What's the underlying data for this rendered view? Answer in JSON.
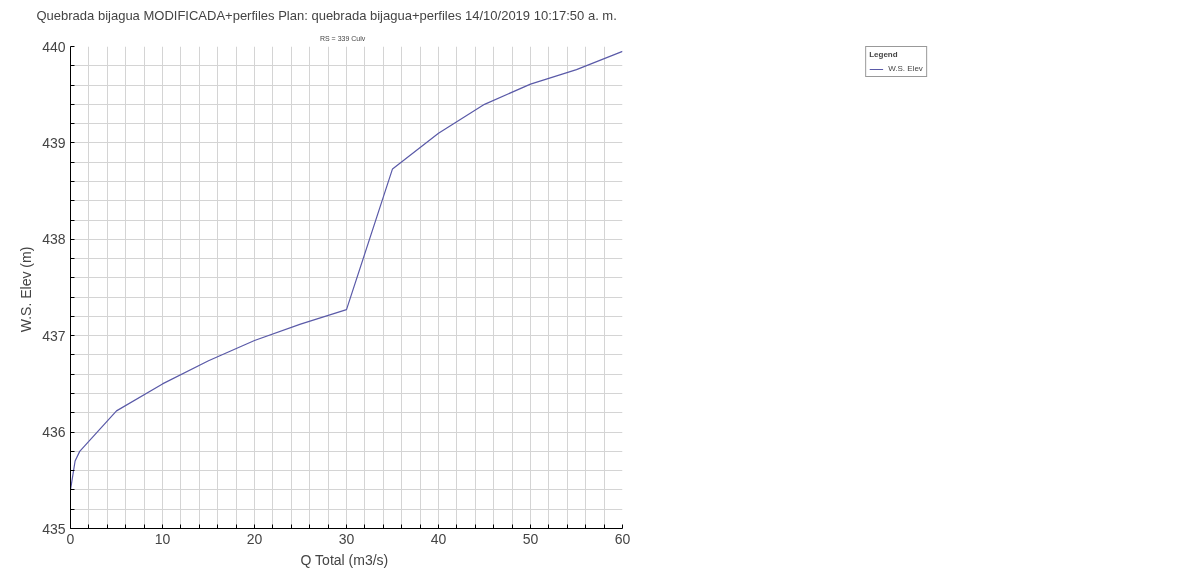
{
  "chart_data": {
    "type": "line",
    "title": "Quebrada bijagua MODIFICADA+perfiles       Plan: quebrada bijagua+perfiles     14/10/2019  10:17:50 a. m.",
    "subtitle": "RS = 339     Culv",
    "xlabel": "Q Total  (m3/s)",
    "ylabel": "W.S. Elev  (m)",
    "legend_title": "Legend",
    "x": [
      0,
      0.5,
      1,
      5,
      10,
      15,
      20,
      25,
      30,
      35,
      40,
      45,
      50,
      55,
      60
    ],
    "series": [
      {
        "name": "W.S. Elev",
        "color": "#5a5aa8",
        "values": [
          435.4,
          435.7,
          435.8,
          436.22,
          436.5,
          436.74,
          436.95,
          437.12,
          437.27,
          438.73,
          439.1,
          439.4,
          439.61,
          439.76,
          439.95
        ]
      }
    ],
    "xlim": [
      0,
      60
    ],
    "ylim": [
      435,
      440
    ],
    "xticks": [
      0,
      {
        "value": 2,
        "label": null
      },
      {
        "value": 4,
        "label": null
      },
      {
        "value": 6,
        "label": null
      },
      {
        "value": 8,
        "label": null
      },
      10,
      {
        "value": 12,
        "label": null
      },
      {
        "value": 14,
        "label": null
      },
      {
        "value": 16,
        "label": null
      },
      {
        "value": 18,
        "label": null
      },
      20,
      {
        "value": 22,
        "label": null
      },
      {
        "value": 24,
        "label": null
      },
      {
        "value": 26,
        "label": null
      },
      {
        "value": 28,
        "label": null
      },
      30,
      {
        "value": 32,
        "label": null
      },
      {
        "value": 34,
        "label": null
      },
      {
        "value": 36,
        "label": null
      },
      {
        "value": 38,
        "label": null
      },
      40,
      {
        "value": 42,
        "label": null
      },
      {
        "value": 44,
        "label": null
      },
      {
        "value": 46,
        "label": null
      },
      {
        "value": 48,
        "label": null
      },
      50,
      {
        "value": 52,
        "label": null
      },
      {
        "value": 54,
        "label": null
      },
      {
        "value": 56,
        "label": null
      },
      {
        "value": 58,
        "label": null
      },
      60
    ],
    "yticks": [
      435,
      {
        "value": 435.2,
        "label": null
      },
      {
        "value": 435.4,
        "label": null
      },
      {
        "value": 435.6,
        "label": null
      },
      {
        "value": 435.8,
        "label": null
      },
      436,
      {
        "value": 436.2,
        "label": null
      },
      {
        "value": 436.4,
        "label": null
      },
      {
        "value": 436.6,
        "label": null
      },
      {
        "value": 436.8,
        "label": null
      },
      437,
      {
        "value": 437.2,
        "label": null
      },
      {
        "value": 437.4,
        "label": null
      },
      {
        "value": 437.6,
        "label": null
      },
      {
        "value": 437.8,
        "label": null
      },
      438,
      {
        "value": 438.2,
        "label": null
      },
      {
        "value": 438.4,
        "label": null
      },
      {
        "value": 438.6,
        "label": null
      },
      {
        "value": 438.8,
        "label": null
      },
      439,
      {
        "value": 439.2,
        "label": null
      },
      {
        "value": 439.4,
        "label": null
      },
      {
        "value": 439.6,
        "label": null
      },
      {
        "value": 439.8,
        "label": null
      },
      440
    ],
    "grid": true,
    "legend": "top right",
    "marker": "none",
    "line_style": "solid"
  }
}
